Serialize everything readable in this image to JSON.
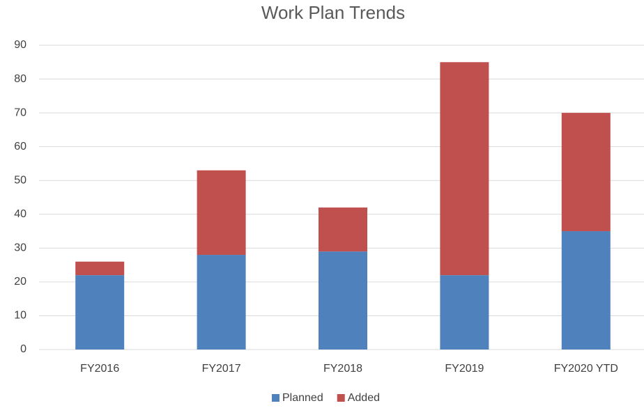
{
  "chart_data": {
    "type": "stacked_bar",
    "title": "Work Plan Trends",
    "categories": [
      "FY2016",
      "FY2017",
      "FY2018",
      "FY2019",
      "FY2020 YTD"
    ],
    "series": [
      {
        "name": "Planned",
        "color": "#4f81bd",
        "values": [
          22,
          28,
          29,
          22,
          35
        ]
      },
      {
        "name": "Added",
        "color": "#c0504d",
        "values": [
          4,
          25,
          13,
          63,
          35
        ]
      }
    ],
    "ylim": [
      0,
      90
    ],
    "yticks": [
      0,
      10,
      20,
      30,
      40,
      50,
      60,
      70,
      80,
      90
    ],
    "grid": true,
    "legend": "bottom"
  }
}
